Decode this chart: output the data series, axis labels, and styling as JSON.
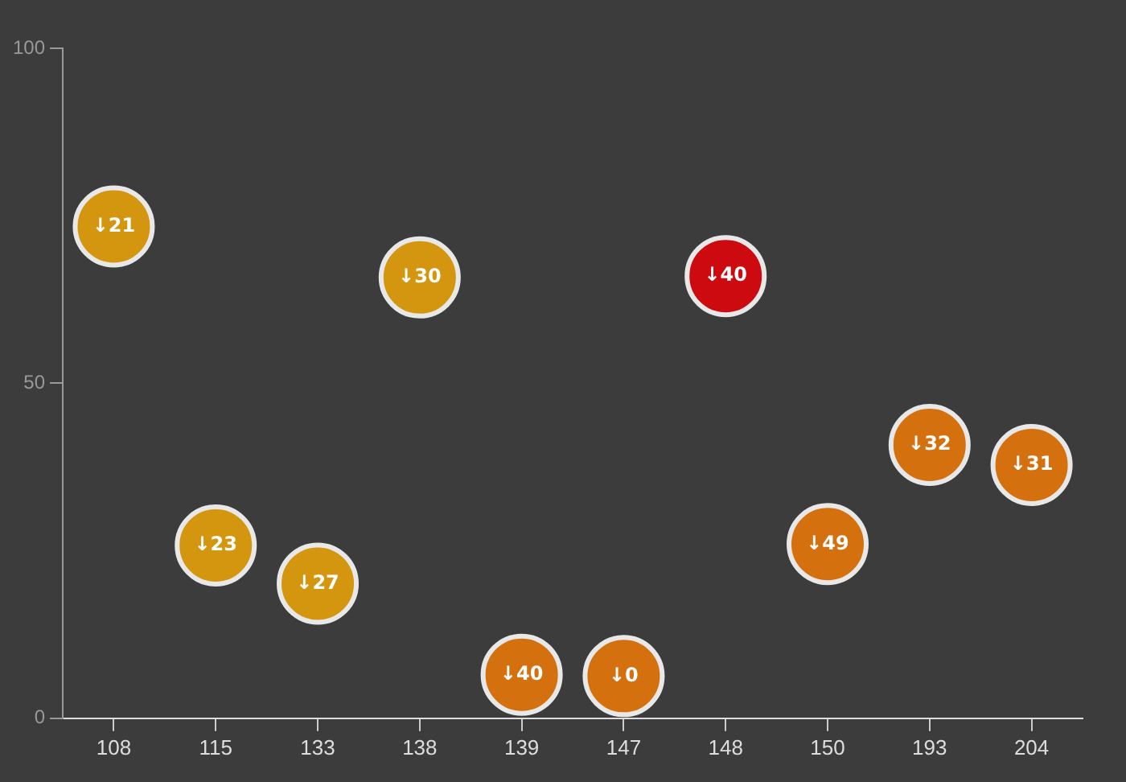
{
  "chart_data": {
    "type": "scatter",
    "categories": [
      "108",
      "115",
      "133",
      "138",
      "139",
      "147",
      "148",
      "150",
      "193",
      "204"
    ],
    "values": [
      73.4,
      25.8,
      20.1,
      65.8,
      6.5,
      6.3,
      66,
      26,
      40.8,
      37.8
    ],
    "colors": [
      "#d4960e",
      "#d4960e",
      "#d4960e",
      "#d4960e",
      "#d5700e",
      "#d5700e",
      "#cc0a10",
      "#d5700e",
      "#d5700e",
      "#d5700e"
    ],
    "annotations": [
      {
        "text": "↓21",
        "x": "108",
        "y": 73.4
      },
      {
        "text": "↓23",
        "x": "115",
        "y": 25.8
      },
      {
        "text": "↓27",
        "x": "133",
        "y": 20.1
      },
      {
        "text": "↓30",
        "x": "138",
        "y": 65.8
      },
      {
        "text": "↓40",
        "x": "139",
        "y": 6.5
      },
      {
        "text": "↓0",
        "x": "147",
        "y": 6.3
      },
      {
        "text": "↓40",
        "x": "148",
        "y": 66
      },
      {
        "text": "↓49",
        "x": "150",
        "y": 26
      },
      {
        "text": "↓32",
        "x": "193",
        "y": 40.8
      },
      {
        "text": "↓31",
        "x": "204",
        "y": 37.8
      }
    ],
    "ylim": [
      0,
      100
    ],
    "yticks": [
      0,
      50,
      100
    ],
    "grid": false,
    "legend": false,
    "marker": "circle"
  }
}
